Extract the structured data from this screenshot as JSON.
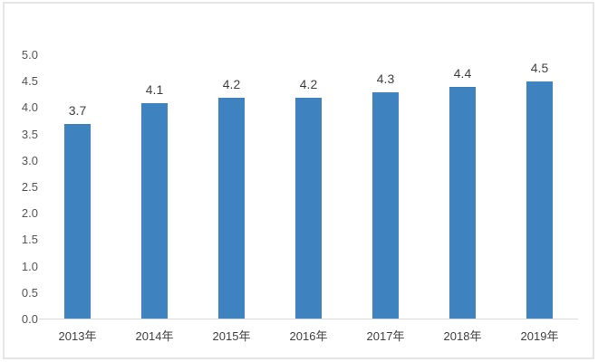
{
  "chart_data": {
    "type": "bar",
    "title": "",
    "categories": [
      "2013年",
      "2014年",
      "2015年",
      "2016年",
      "2017年",
      "2018年",
      "2019年"
    ],
    "values": [
      3.7,
      4.1,
      4.2,
      4.2,
      4.3,
      4.4,
      4.5
    ],
    "data_labels": [
      "3.7",
      "4.1",
      "4.2",
      "4.2",
      "4.3",
      "4.4",
      "4.5"
    ],
    "y_ticks": [
      "5.0",
      "4.5",
      "4.0",
      "3.5",
      "3.0",
      "2.5",
      "2.0",
      "1.5",
      "1.0",
      "0.5",
      "0.0"
    ],
    "ylim": [
      0,
      5
    ],
    "xlabel": "",
    "ylabel": "",
    "grid": false,
    "legend": null,
    "bar_color": "#3e82c0",
    "value_label_color": "#404040",
    "tick_label_color": "#555555",
    "axis_line_color": "#d9d9d9",
    "frame_border_color": "#e5e5e5",
    "background_color": "#ffffff"
  }
}
